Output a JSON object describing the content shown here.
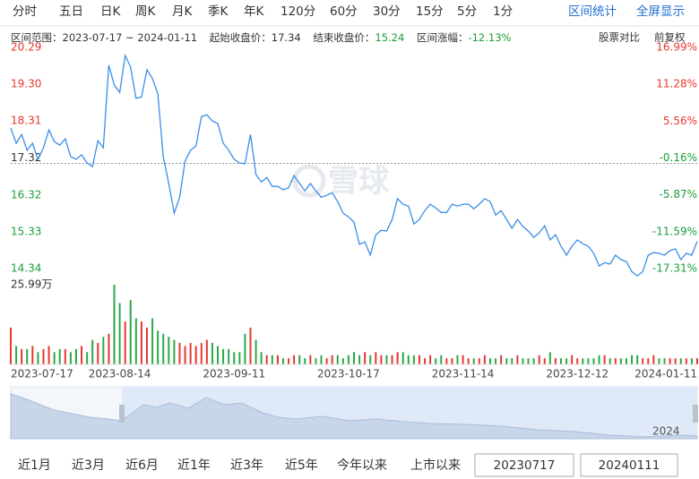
{
  "tabs": [
    "分时",
    "五日",
    "日K",
    "周K",
    "月K",
    "季K",
    "年K",
    "120分",
    "60分",
    "30分",
    "15分",
    "5分",
    "1分"
  ],
  "tab_links": [
    "区间统计",
    "全屏显示"
  ],
  "info": {
    "range_label": "区间范围：",
    "range": "2023-07-17 ~ 2024-01-11",
    "start_label": "起始收盘价：",
    "start_close": 17.34,
    "end_label": "结束收盘价：",
    "end_close": 15.24,
    "change_label": "区间涨幅：",
    "change": "-12.13%"
  },
  "info_links": [
    "股票对比",
    "前复权"
  ],
  "watermark": "雪球",
  "chart_data": {
    "type": "line",
    "color": "#3a8ee6",
    "values": [
      18.29,
      17.88,
      18.12,
      17.69,
      17.88,
      17.45,
      17.76,
      18.24,
      17.93,
      17.83,
      18.0,
      17.52,
      17.45,
      17.57,
      17.35,
      17.25,
      17.95,
      17.76,
      19.98,
      19.45,
      19.25,
      20.24,
      19.93,
      19.09,
      19.13,
      19.86,
      19.62,
      19.21,
      17.52,
      16.8,
      16.0,
      16.43,
      17.4,
      17.69,
      17.81,
      18.6,
      18.65,
      18.48,
      18.41,
      17.88,
      17.69,
      17.45,
      17.35,
      17.33,
      18.12,
      17.04,
      16.84,
      16.96,
      16.72,
      16.72,
      16.63,
      16.68,
      17.01,
      16.8,
      16.6,
      16.8,
      16.6,
      16.43,
      16.48,
      16.55,
      16.31,
      16.0,
      15.9,
      15.76,
      15.16,
      15.23,
      14.87,
      15.42,
      15.54,
      15.52,
      15.83,
      16.39,
      16.24,
      16.19,
      15.71,
      15.83,
      16.07,
      16.24,
      16.14,
      16.02,
      16.02,
      16.24,
      16.19,
      16.24,
      16.24,
      16.12,
      16.24,
      16.39,
      16.31,
      15.95,
      16.07,
      15.83,
      15.59,
      15.83,
      15.64,
      15.52,
      15.35,
      15.47,
      15.66,
      15.28,
      15.42,
      15.11,
      14.87,
      15.11,
      15.28,
      15.18,
      15.11,
      14.92,
      14.58,
      14.67,
      14.63,
      14.87,
      14.75,
      14.7,
      14.43,
      14.31,
      14.43,
      14.87,
      14.94,
      14.92,
      14.87,
      14.99,
      15.04,
      14.75,
      14.92,
      14.87,
      15.24
    ],
    "xlim": [
      0,
      126
    ],
    "xticks": [
      {
        "value": 0,
        "label": "2023-07-17"
      },
      {
        "value": 20,
        "label": "2023-08-14"
      },
      {
        "value": 41,
        "label": "2023-09-11"
      },
      {
        "value": 62,
        "label": "2023-10-17"
      },
      {
        "value": 83,
        "label": "2023-11-14"
      },
      {
        "value": 104,
        "label": "2023-12-12"
      },
      {
        "value": 126,
        "label": "2024-01-11"
      }
    ],
    "ylim": [
      14.34,
      20.29
    ],
    "yticks": [
      20.29,
      {
        "value": 19.3,
        "label": "19.30"
      },
      18.31,
      17.32,
      16.32,
      15.33,
      14.34
    ],
    "y2lim": [
      -17.31,
      16.99
    ],
    "y2ticks": [
      {
        "value": 16.99,
        "label": "16.99%"
      },
      {
        "value": 11.28,
        "label": "11.28%"
      },
      {
        "value": 5.56,
        "label": "5.56%"
      },
      {
        "value": -0.16,
        "label": "-0.16%"
      },
      {
        "value": -5.87,
        "label": "-5.87%"
      },
      {
        "value": -11.59,
        "label": "-11.59%"
      },
      {
        "value": -17.31,
        "label": "-17.31%"
      }
    ],
    "volume": {
      "ylim": [
        0,
        25.99
      ],
      "yticks": [
        {
          "value": 25.99,
          "label": "25.99万"
        }
      ],
      "values": [
        12,
        6,
        5,
        5,
        6,
        4,
        5,
        6,
        4,
        5,
        5,
        4,
        5,
        6,
        4,
        8,
        7,
        9,
        10,
        26,
        20,
        14,
        21,
        15,
        14,
        12,
        15,
        11,
        10,
        9,
        8,
        7,
        6,
        7,
        6,
        7,
        8,
        7,
        6,
        5,
        5,
        4,
        4,
        10,
        12,
        8,
        4,
        3,
        3,
        3,
        2,
        2,
        3,
        3,
        2,
        3,
        2,
        3,
        2,
        3,
        3,
        2,
        3,
        4,
        3,
        4,
        3,
        4,
        3,
        3,
        3,
        4,
        4,
        3,
        3,
        3,
        2,
        3,
        2,
        3,
        2,
        2,
        3,
        3,
        2,
        2,
        2,
        3,
        2,
        2,
        3,
        2,
        2,
        3,
        2,
        2,
        2,
        3,
        2,
        4,
        2,
        2,
        2,
        3,
        2,
        2,
        2,
        2,
        3,
        3,
        2,
        2,
        2,
        2,
        3,
        3,
        2,
        2,
        3,
        2,
        2,
        2,
        2,
        2,
        2,
        2,
        2
      ]
    }
  },
  "navigator": {
    "year_label": "2024"
  },
  "ranges": [
    "近1月",
    "近3月",
    "近6月",
    "近1年",
    "近3年",
    "近5年",
    "今年以来",
    "上市以来"
  ],
  "date_inputs": [
    "20230717",
    "20240111"
  ]
}
